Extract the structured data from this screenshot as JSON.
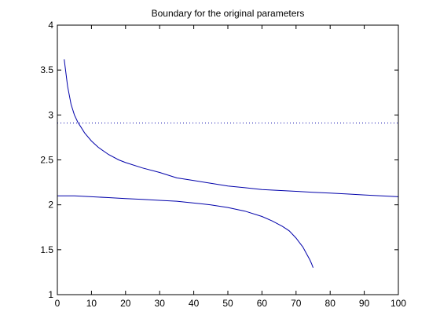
{
  "chart_data": {
    "type": "line",
    "title": "Boundary for the original parameters",
    "xlabel": "",
    "ylabel": "",
    "xlim": [
      0,
      100
    ],
    "ylim": [
      1,
      4
    ],
    "x_ticks": [
      0,
      10,
      20,
      30,
      40,
      50,
      60,
      70,
      80,
      90,
      100
    ],
    "y_ticks": [
      1,
      1.5,
      2,
      2.5,
      3,
      3.5,
      4
    ],
    "grid": false,
    "legend": "none",
    "series": [
      {
        "color": "#0000aa",
        "style": "solid",
        "x": [
          2,
          3,
          4,
          5,
          6,
          7,
          8,
          10,
          12,
          15,
          18,
          20,
          25,
          30,
          35,
          40,
          45,
          50,
          55,
          60,
          65,
          70,
          75,
          80,
          85,
          90,
          95,
          100
        ],
        "y": [
          3.62,
          3.32,
          3.12,
          3.0,
          2.92,
          2.86,
          2.8,
          2.71,
          2.64,
          2.56,
          2.5,
          2.47,
          2.41,
          2.36,
          2.3,
          2.27,
          2.24,
          2.21,
          2.19,
          2.17,
          2.16,
          2.15,
          2.14,
          2.13,
          2.12,
          2.11,
          2.1,
          2.09
        ]
      },
      {
        "color": "#0000aa",
        "style": "solid",
        "x": [
          0,
          5,
          10,
          15,
          20,
          25,
          30,
          35,
          40,
          45,
          50,
          55,
          60,
          63,
          66,
          68,
          70,
          71,
          72,
          73,
          74,
          74.5,
          75
        ],
        "y": [
          2.1,
          2.1,
          2.09,
          2.08,
          2.07,
          2.06,
          2.05,
          2.04,
          2.02,
          2.0,
          1.97,
          1.93,
          1.87,
          1.82,
          1.76,
          1.71,
          1.63,
          1.58,
          1.53,
          1.46,
          1.39,
          1.35,
          1.3
        ]
      },
      {
        "color": "#0000aa",
        "style": "dotted",
        "x": [
          0,
          100
        ],
        "y": [
          2.91,
          2.91
        ]
      }
    ]
  }
}
